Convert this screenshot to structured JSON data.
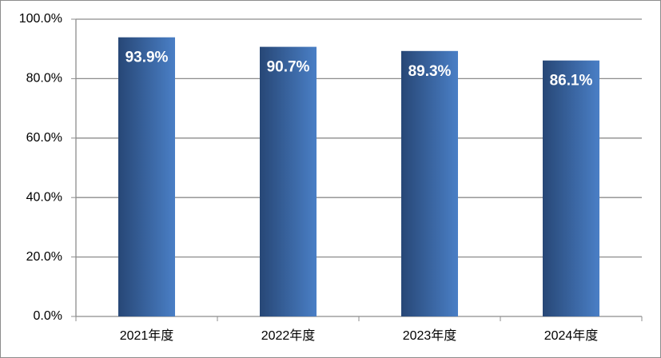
{
  "chart_data": {
    "type": "bar",
    "categories": [
      "2021年度",
      "2022年度",
      "2023年度",
      "2024年度"
    ],
    "values": [
      93.9,
      90.7,
      89.3,
      86.1
    ],
    "value_labels": [
      "93.9%",
      "90.7%",
      "89.3%",
      "86.1%"
    ],
    "color": [
      "#274776",
      "#4a7fc6"
    ],
    "ylim": [
      0,
      100
    ],
    "yticks": [
      {
        "value": 0,
        "label": "0.0%"
      },
      {
        "value": 20,
        "label": "20.0%"
      },
      {
        "value": 40,
        "label": "40.0%"
      },
      {
        "value": 60,
        "label": "60.0%"
      },
      {
        "value": 80,
        "label": "80.0%"
      },
      {
        "value": 100,
        "label": "100.0%"
      }
    ],
    "grid": true
  }
}
